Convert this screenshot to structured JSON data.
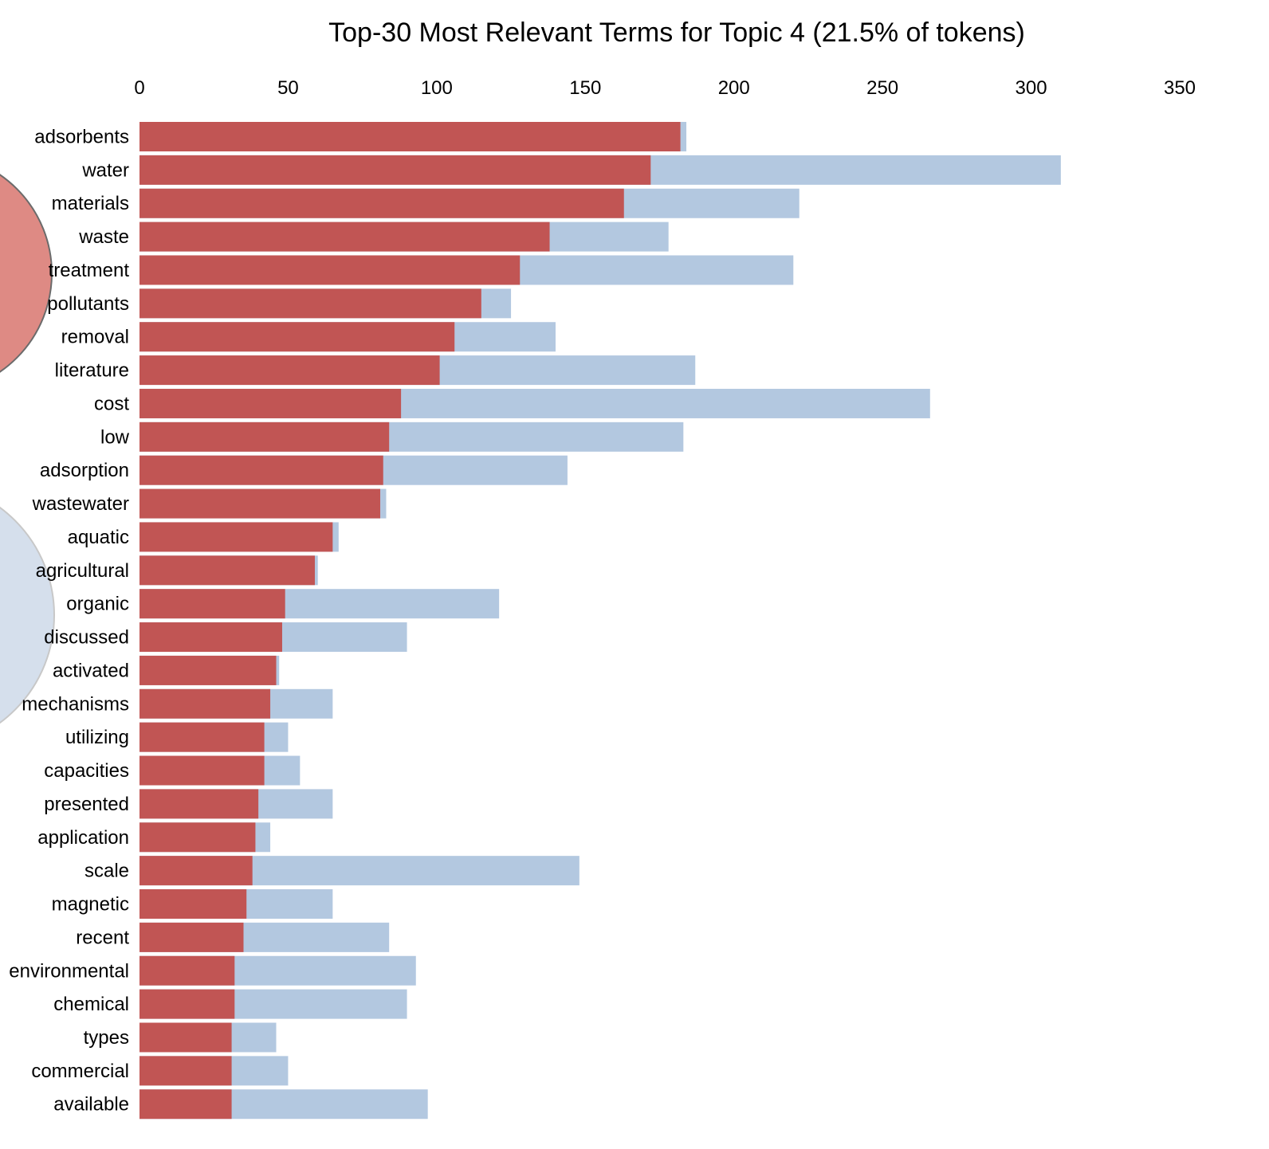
{
  "chart_data": {
    "type": "bar",
    "orientation": "horizontal",
    "title": "Top-30 Most Relevant Terms for Topic 4 (21.5% of tokens)",
    "xlabel": "",
    "ylabel": "",
    "xlim": [
      0,
      350
    ],
    "x_ticks": [
      "0",
      "50",
      "100",
      "150",
      "200",
      "250",
      "300",
      "350"
    ],
    "x_axis_position": "top",
    "grid": false,
    "categories": [
      "adsorbents",
      "water",
      "materials",
      "waste",
      "treatment",
      "pollutants",
      "removal",
      "literature",
      "cost",
      "low",
      "adsorption",
      "wastewater",
      "aquatic",
      "agricultural",
      "organic",
      "discussed",
      "activated",
      "mechanisms",
      "utilizing",
      "capacities",
      "presented",
      "application",
      "scale",
      "magnetic",
      "recent",
      "environmental",
      "chemical",
      "types",
      "commercial",
      "available"
    ],
    "series": [
      {
        "role": "overall",
        "color": "#b3c8e0",
        "values": [
          184,
          310,
          222,
          178,
          220,
          125,
          140,
          187,
          266,
          183,
          144,
          83,
          67,
          60,
          121,
          90,
          47,
          65,
          50,
          54,
          65,
          44,
          148,
          65,
          84,
          93,
          90,
          46,
          50,
          97
        ]
      },
      {
        "role": "topic",
        "color": "#c15554",
        "values": [
          182,
          172,
          163,
          138,
          128,
          115,
          106,
          101,
          88,
          84,
          82,
          81,
          65,
          59,
          49,
          48,
          46,
          44,
          42,
          42,
          40,
          39,
          38,
          36,
          35,
          32,
          32,
          31,
          31,
          31
        ]
      }
    ]
  },
  "background_circles": [
    {
      "name": "topic-circle-selected",
      "fill": "#de8a84",
      "stroke": "#6b6b6b"
    },
    {
      "name": "topic-circle-other",
      "fill": "#d5dfec",
      "stroke": "#c8c8c8"
    }
  ]
}
